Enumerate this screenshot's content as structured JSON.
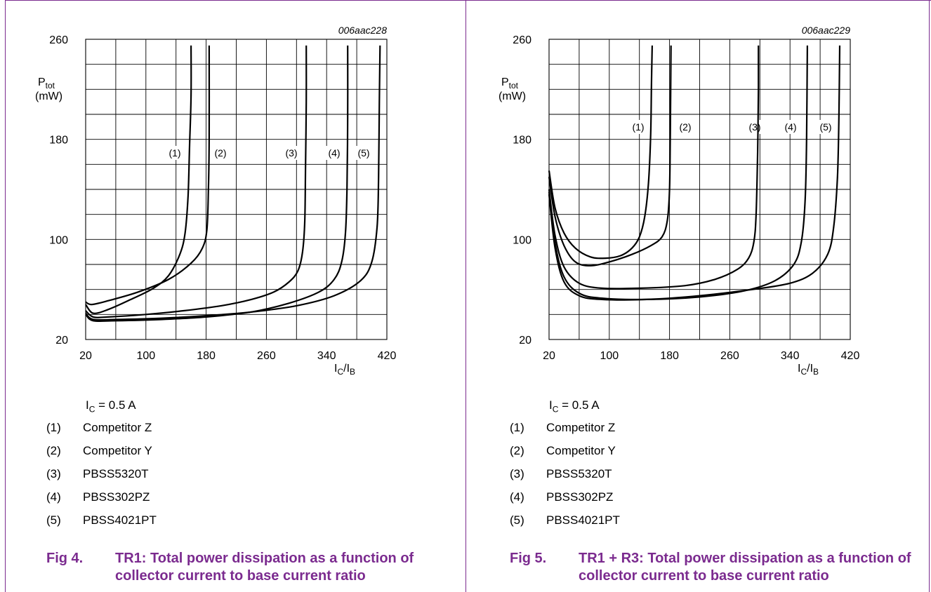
{
  "panels": [
    {
      "id_code": "006aac228",
      "condition": {
        "symbol": "I",
        "sub": "C",
        "rest": " = 0.5 A"
      },
      "legend": [
        {
          "num": "(1)",
          "label": "Competitor Z"
        },
        {
          "num": "(2)",
          "label": "Competitor Y"
        },
        {
          "num": "(3)",
          "label": "PBSS5320T"
        },
        {
          "num": "(4)",
          "label": "PBSS302PZ"
        },
        {
          "num": "(5)",
          "label": "PBSS4021PT"
        }
      ],
      "caption": {
        "fig": "Fig 4.",
        "text": "TR1: Total power dissipation as a function of collector current to base current ratio"
      }
    },
    {
      "id_code": "006aac229",
      "condition": {
        "symbol": "I",
        "sub": "C",
        "rest": " = 0.5 A"
      },
      "legend": [
        {
          "num": "(1)",
          "label": "Competitor Z"
        },
        {
          "num": "(2)",
          "label": "Competitor Y"
        },
        {
          "num": "(3)",
          "label": "PBSS5320T"
        },
        {
          "num": "(4)",
          "label": "PBSS302PZ"
        },
        {
          "num": "(5)",
          "label": "PBSS4021PT"
        }
      ],
      "caption": {
        "fig": "Fig 5.",
        "text": "TR1 + R3: Total power dissipation as a function of collector current to base current ratio"
      }
    }
  ],
  "chart_data": [
    {
      "type": "line",
      "ylabel": {
        "main": "P",
        "sub": "tot",
        "unit": "(mW)"
      },
      "xlabel": {
        "main": "I",
        "sub1": "C",
        "sep": "/I",
        "sub2": "B"
      },
      "xlim": [
        20,
        420
      ],
      "ylim": [
        20,
        260
      ],
      "xticks": [
        20,
        100,
        180,
        260,
        340,
        420
      ],
      "yticks": [
        20,
        100,
        180,
        260
      ],
      "grid": true,
      "curve_labels": [
        "(1)",
        "(2)",
        "(3)",
        "(4)",
        "(5)"
      ],
      "series": [
        {
          "label": "(1)",
          "points": [
            [
              20,
              48
            ],
            [
              30,
              41
            ],
            [
              50,
              44
            ],
            [
              80,
              52
            ],
            [
              110,
              61
            ],
            [
              130,
              71
            ],
            [
              145,
              88
            ],
            [
              152,
              105
            ],
            [
              156,
              135
            ],
            [
              158,
              175
            ],
            [
              160,
              215
            ],
            [
              160,
              255
            ]
          ]
        },
        {
          "label": "(2)",
          "points": [
            [
              20,
              50
            ],
            [
              28,
              48
            ],
            [
              50,
              51
            ],
            [
              90,
              58
            ],
            [
              130,
              68
            ],
            [
              160,
              81
            ],
            [
              175,
              93
            ],
            [
              181,
              108
            ],
            [
              183,
              140
            ],
            [
              184,
              180
            ],
            [
              184,
              255
            ]
          ]
        },
        {
          "label": "(3)",
          "points": [
            [
              20,
              43
            ],
            [
              30,
              38
            ],
            [
              50,
              38
            ],
            [
              100,
              40
            ],
            [
              150,
              43
            ],
            [
              200,
              47
            ],
            [
              240,
              52
            ],
            [
              270,
              58
            ],
            [
              290,
              66
            ],
            [
              302,
              75
            ],
            [
              308,
              90
            ],
            [
              311,
              115
            ],
            [
              312,
              160
            ],
            [
              313,
              210
            ],
            [
              313,
              255
            ]
          ]
        },
        {
          "label": "(4)",
          "points": [
            [
              20,
              40
            ],
            [
              30,
              35
            ],
            [
              60,
              35
            ],
            [
              120,
              36
            ],
            [
              180,
              38
            ],
            [
              240,
              42
            ],
            [
              290,
              49
            ],
            [
              330,
              58
            ],
            [
              350,
              68
            ],
            [
              360,
              82
            ],
            [
              365,
              105
            ],
            [
              367,
              140
            ],
            [
              368,
              200
            ],
            [
              368,
              255
            ]
          ]
        },
        {
          "label": "(5)",
          "points": [
            [
              20,
              41
            ],
            [
              30,
              36
            ],
            [
              60,
              36
            ],
            [
              120,
              37
            ],
            [
              180,
              39
            ],
            [
              240,
              42
            ],
            [
              300,
              47
            ],
            [
              350,
              55
            ],
            [
              385,
              67
            ],
            [
              400,
              82
            ],
            [
              407,
              110
            ],
            [
              409,
              150
            ],
            [
              410,
              210
            ],
            [
              411,
              255
            ]
          ]
        }
      ]
    },
    {
      "type": "line",
      "ylabel": {
        "main": "P",
        "sub": "tot",
        "unit": "(mW)"
      },
      "xlabel": {
        "main": "I",
        "sub1": "C",
        "sep": "/I",
        "sub2": "B"
      },
      "xlim": [
        20,
        420
      ],
      "ylim": [
        20,
        260
      ],
      "xticks": [
        20,
        100,
        180,
        260,
        340,
        420
      ],
      "yticks": [
        20,
        100,
        180,
        260
      ],
      "grid": true,
      "curve_labels": [
        "(1)",
        "(2)",
        "(3)",
        "(4)",
        "(5)"
      ],
      "series": [
        {
          "label": "(1)",
          "points": [
            [
              20,
              155
            ],
            [
              28,
              125
            ],
            [
              40,
              105
            ],
            [
              55,
              93
            ],
            [
              75,
              86
            ],
            [
              95,
              85
            ],
            [
              115,
              87
            ],
            [
              130,
              93
            ],
            [
              140,
              102
            ],
            [
              147,
              118
            ],
            [
              152,
              145
            ],
            [
              155,
              185
            ],
            [
              156,
              225
            ],
            [
              157,
              255
            ]
          ]
        },
        {
          "label": "(2)",
          "points": [
            [
              20,
              150
            ],
            [
              28,
              118
            ],
            [
              40,
              95
            ],
            [
              55,
              82
            ],
            [
              75,
              79
            ],
            [
              100,
              82
            ],
            [
              130,
              88
            ],
            [
              155,
              95
            ],
            [
              170,
              102
            ],
            [
              177,
              115
            ],
            [
              180,
              140
            ],
            [
              181,
              185
            ],
            [
              182,
              255
            ]
          ]
        },
        {
          "label": "(3)",
          "points": [
            [
              20,
              140
            ],
            [
              28,
              103
            ],
            [
              40,
              78
            ],
            [
              60,
              65
            ],
            [
              90,
              61
            ],
            [
              140,
              61
            ],
            [
              200,
              63
            ],
            [
              240,
              68
            ],
            [
              270,
              76
            ],
            [
              285,
              85
            ],
            [
              292,
              98
            ],
            [
              295,
              120
            ],
            [
              297,
              170
            ],
            [
              298,
              220
            ],
            [
              298,
              255
            ]
          ]
        },
        {
          "label": "(4)",
          "points": [
            [
              20,
              138
            ],
            [
              28,
              97
            ],
            [
              40,
              70
            ],
            [
              60,
              57
            ],
            [
              90,
              53
            ],
            [
              150,
              52
            ],
            [
              220,
              54
            ],
            [
              280,
              59
            ],
            [
              320,
              67
            ],
            [
              345,
              80
            ],
            [
              355,
              98
            ],
            [
              360,
              130
            ],
            [
              362,
              180
            ],
            [
              363,
              255
            ]
          ]
        },
        {
          "label": "(5)",
          "points": [
            [
              20,
              136
            ],
            [
              28,
              93
            ],
            [
              40,
              66
            ],
            [
              60,
              55
            ],
            [
              90,
              52
            ],
            [
              150,
              52
            ],
            [
              220,
              55
            ],
            [
              290,
              60
            ],
            [
              340,
              65
            ],
            [
              370,
              73
            ],
            [
              390,
              88
            ],
            [
              398,
              110
            ],
            [
              403,
              150
            ],
            [
              405,
              200
            ],
            [
              406,
              255
            ]
          ]
        }
      ]
    }
  ]
}
